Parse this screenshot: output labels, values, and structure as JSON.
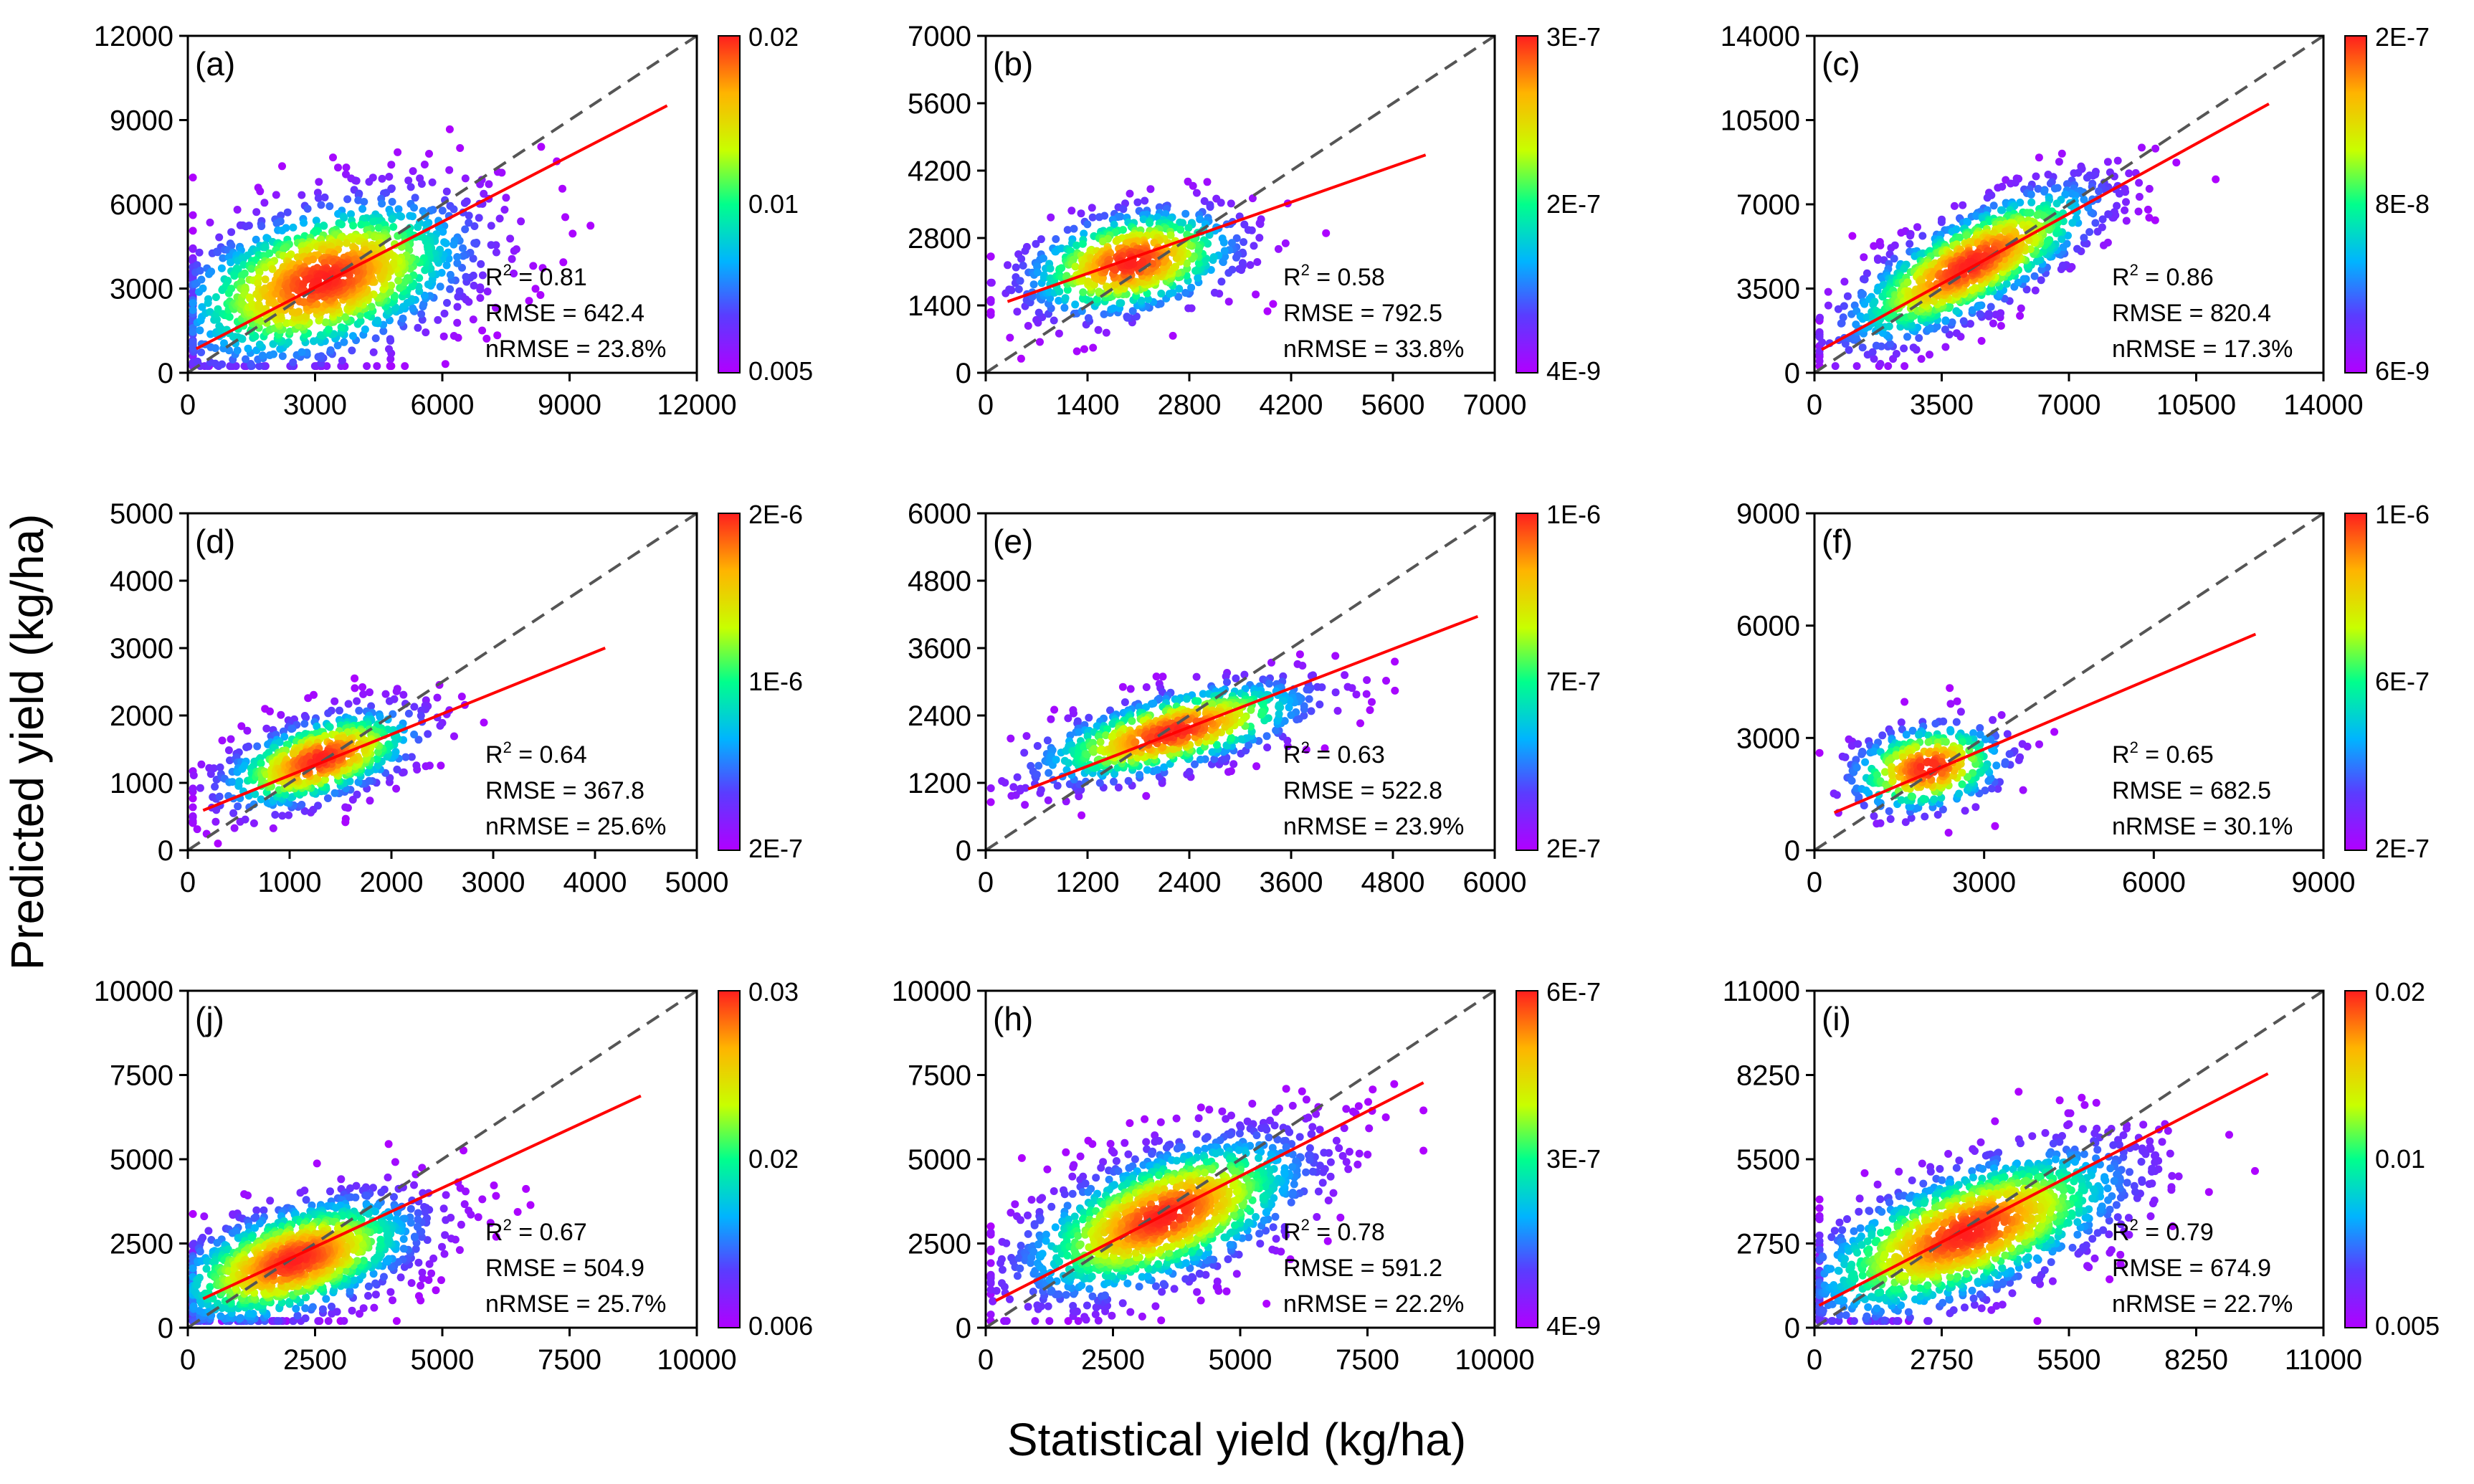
{
  "figure": {
    "xlabel": "Statistical yield (kg/ha)",
    "ylabel": "Predicted yield (kg/ha)"
  },
  "colors": {
    "one_to_one_line": "#555555",
    "fit_line": "#ff0000",
    "colormap": [
      "#8b00ff",
      "#3c3cff",
      "#00c8ff",
      "#00ff7a",
      "#c8ff00",
      "#ffb000",
      "#ff2000"
    ]
  },
  "chart_data": [
    {
      "type": "scatter",
      "panel": "(a)",
      "xlim": [
        0,
        12000
      ],
      "ylim": [
        0,
        12000
      ],
      "xticks": [
        "0",
        "3000",
        "6000",
        "9000",
        "12000"
      ],
      "yticks": [
        "0",
        "3000",
        "6000",
        "9000",
        "12000"
      ],
      "colorbar": {
        "top": "0.02",
        "mid": "0.01",
        "bottom": "0.005"
      },
      "stats": {
        "r2": "= 0.81",
        "rmse": "RMSE = 642.4",
        "nrmse": "nRMSE = 23.8%"
      },
      "fit": {
        "slope": 0.78,
        "intercept": 700,
        "x_start": 200,
        "x_end": 11300
      },
      "cloud": {
        "center": [
          3200,
          3300
        ],
        "spread": [
          2100,
          1300
        ],
        "n": 1400,
        "angle": 0.6,
        "x_max": 11500,
        "y_max": 10500
      }
    },
    {
      "type": "scatter",
      "panel": "(b)",
      "xlim": [
        0,
        7000
      ],
      "ylim": [
        0,
        7000
      ],
      "xticks": [
        "0",
        "1400",
        "2800",
        "4200",
        "5600",
        "7000"
      ],
      "yticks": [
        "0",
        "1400",
        "2800",
        "4200",
        "5600",
        "7000"
      ],
      "colorbar": {
        "top": "3E-7",
        "mid": "2E-7",
        "bottom": "4E-9"
      },
      "stats": {
        "r2": "= 0.58",
        "rmse": "RMSE = 792.5",
        "nRMSE": "",
        "nrmse": "nRMSE = 33.8%"
      },
      "fit": {
        "slope": 0.53,
        "intercept": 1320,
        "x_start": 300,
        "x_end": 6050
      },
      "cloud": {
        "center": [
          2000,
          2300
        ],
        "spread": [
          850,
          550
        ],
        "n": 700,
        "angle": 0.45,
        "x_max": 6200,
        "y_max": 5000
      }
    },
    {
      "type": "scatter",
      "panel": "(c)",
      "xlim": [
        0,
        14000
      ],
      "ylim": [
        0,
        14000
      ],
      "xticks": [
        "0",
        "3500",
        "7000",
        "10500",
        "14000"
      ],
      "yticks": [
        "0",
        "3500",
        "7000",
        "10500",
        "14000"
      ],
      "colorbar": {
        "top": "2E-7",
        "mid": "8E-8",
        "bottom": "6E-9"
      },
      "stats": {
        "r2": "= 0.86",
        "rmse": "RMSE = 820.4",
        "nrmse": "nRMSE = 17.3%"
      },
      "fit": {
        "slope": 0.83,
        "intercept": 800,
        "x_start": 200,
        "x_end": 12500
      },
      "cloud": {
        "center": [
          4300,
          4500
        ],
        "spread": [
          2500,
          900
        ],
        "n": 1100,
        "angle": 0.75,
        "x_max": 12600,
        "y_max": 10000
      }
    },
    {
      "type": "scatter",
      "panel": "(d)",
      "xlim": [
        0,
        5000
      ],
      "ylim": [
        0,
        5000
      ],
      "xticks": [
        "0",
        "1000",
        "2000",
        "3000",
        "4000",
        "5000"
      ],
      "yticks": [
        "0",
        "1000",
        "2000",
        "3000",
        "4000",
        "5000"
      ],
      "colorbar": {
        "top": "2E-6",
        "mid": "1E-6",
        "bottom": "2E-7"
      },
      "stats": {
        "r2": "= 0.64",
        "rmse": "RMSE = 367.8",
        "nrmse": "nRMSE = 25.6%"
      },
      "fit": {
        "slope": 0.61,
        "intercept": 500,
        "x_start": 150,
        "x_end": 4100
      },
      "cloud": {
        "center": [
          1300,
          1350
        ],
        "spread": [
          600,
          300
        ],
        "n": 650,
        "angle": 0.55,
        "x_max": 4100,
        "y_max": 3800
      }
    },
    {
      "type": "scatter",
      "panel": "(e)",
      "xlim": [
        0,
        6000
      ],
      "ylim": [
        0,
        6000
      ],
      "xticks": [
        "0",
        "1200",
        "2400",
        "3600",
        "4800",
        "6000"
      ],
      "yticks": [
        "0",
        "1200",
        "2400",
        "3600",
        "4800",
        "6000"
      ],
      "colorbar": {
        "top": "1E-6",
        "mid": "7E-7",
        "bottom": "2E-7"
      },
      "stats": {
        "r2": "= 0.63",
        "rmse": "RMSE = 522.8",
        "nrmse": "nRMSE = 23.9%"
      },
      "fit": {
        "slope": 0.58,
        "intercept": 800,
        "x_start": 500,
        "x_end": 5800
      },
      "cloud": {
        "center": [
          2200,
          2100
        ],
        "spread": [
          950,
          350
        ],
        "n": 750,
        "angle": 0.4,
        "x_max": 5800,
        "y_max": 4600
      }
    },
    {
      "type": "scatter",
      "panel": "(f)",
      "xlim": [
        0,
        9000
      ],
      "ylim": [
        0,
        9000
      ],
      "xticks": [
        "0",
        "3000",
        "6000",
        "9000"
      ],
      "yticks": [
        "0",
        "3000",
        "6000",
        "9000"
      ],
      "colorbar": {
        "top": "1E-6",
        "mid": "6E-7",
        "bottom": "2E-7"
      },
      "stats": {
        "r2": "= 0.65",
        "rmse": "RMSE = 682.5",
        "nrmse": "nRMSE = 30.1%"
      },
      "fit": {
        "slope": 0.64,
        "intercept": 780,
        "x_start": 350,
        "x_end": 7800
      },
      "cloud": {
        "center": [
          2000,
          2200
        ],
        "spread": [
          800,
          600
        ],
        "n": 380,
        "angle": 0.5,
        "x_max": 7800,
        "y_max": 6600
      }
    },
    {
      "type": "scatter",
      "panel": "(j)",
      "xlim": [
        0,
        10000
      ],
      "ylim": [
        0,
        10000
      ],
      "xticks": [
        "0",
        "2500",
        "5000",
        "7500",
        "10000"
      ],
      "yticks": [
        "0",
        "2500",
        "5000",
        "7500",
        "10000"
      ],
      "colorbar": {
        "top": "0.03",
        "mid": "0.02",
        "bottom": "0.006"
      },
      "stats": {
        "r2": "= 0.67",
        "rmse": "RMSE = 504.9",
        "nrmse": "nRMSE = 25.7%"
      },
      "fit": {
        "slope": 0.7,
        "intercept": 650,
        "x_start": 300,
        "x_end": 8900
      },
      "cloud": {
        "center": [
          2100,
          2000
        ],
        "spread": [
          1500,
          800
        ],
        "n": 1300,
        "angle": 0.55,
        "x_max": 8900,
        "y_max": 8800
      }
    },
    {
      "type": "scatter",
      "panel": "(h)",
      "xlim": [
        0,
        10000
      ],
      "ylim": [
        0,
        10000
      ],
      "xticks": [
        "0",
        "2500",
        "5000",
        "7500",
        "10000"
      ],
      "yticks": [
        "0",
        "2500",
        "5000",
        "7500",
        "10000"
      ],
      "colorbar": {
        "top": "6E-7",
        "mid": "3E-7",
        "bottom": "4E-9"
      },
      "stats": {
        "r2": "= 0.78",
        "rmse": "RMSE = 591.2",
        "nrmse": "nRMSE = 22.2%"
      },
      "fit": {
        "slope": 0.77,
        "intercept": 650,
        "x_start": 200,
        "x_end": 8600
      },
      "cloud": {
        "center": [
          3500,
          3300
        ],
        "spread": [
          1800,
          900
        ],
        "n": 1400,
        "angle": 0.65,
        "x_max": 8600,
        "y_max": 8000
      }
    },
    {
      "type": "scatter",
      "panel": "(i)",
      "xlim": [
        0,
        11000
      ],
      "ylim": [
        0,
        11000
      ],
      "xticks": [
        "0",
        "2750",
        "5500",
        "8250",
        "11000"
      ],
      "yticks": [
        "0",
        "2750",
        "5500",
        "8250",
        "11000"
      ],
      "colorbar": {
        "top": "0.02",
        "mid": "0.01",
        "bottom": "0.005"
      },
      "stats": {
        "r2": "= 0.79",
        "rmse": "RMSE = 674.9",
        "nrmse": "nRMSE = 22.7%"
      },
      "fit": {
        "slope": 0.78,
        "intercept": 650,
        "x_start": 100,
        "x_end": 9800
      },
      "cloud": {
        "center": [
          3300,
          3100
        ],
        "spread": [
          2200,
          1000
        ],
        "n": 1500,
        "angle": 0.62,
        "x_max": 9800,
        "y_max": 9300
      }
    }
  ]
}
